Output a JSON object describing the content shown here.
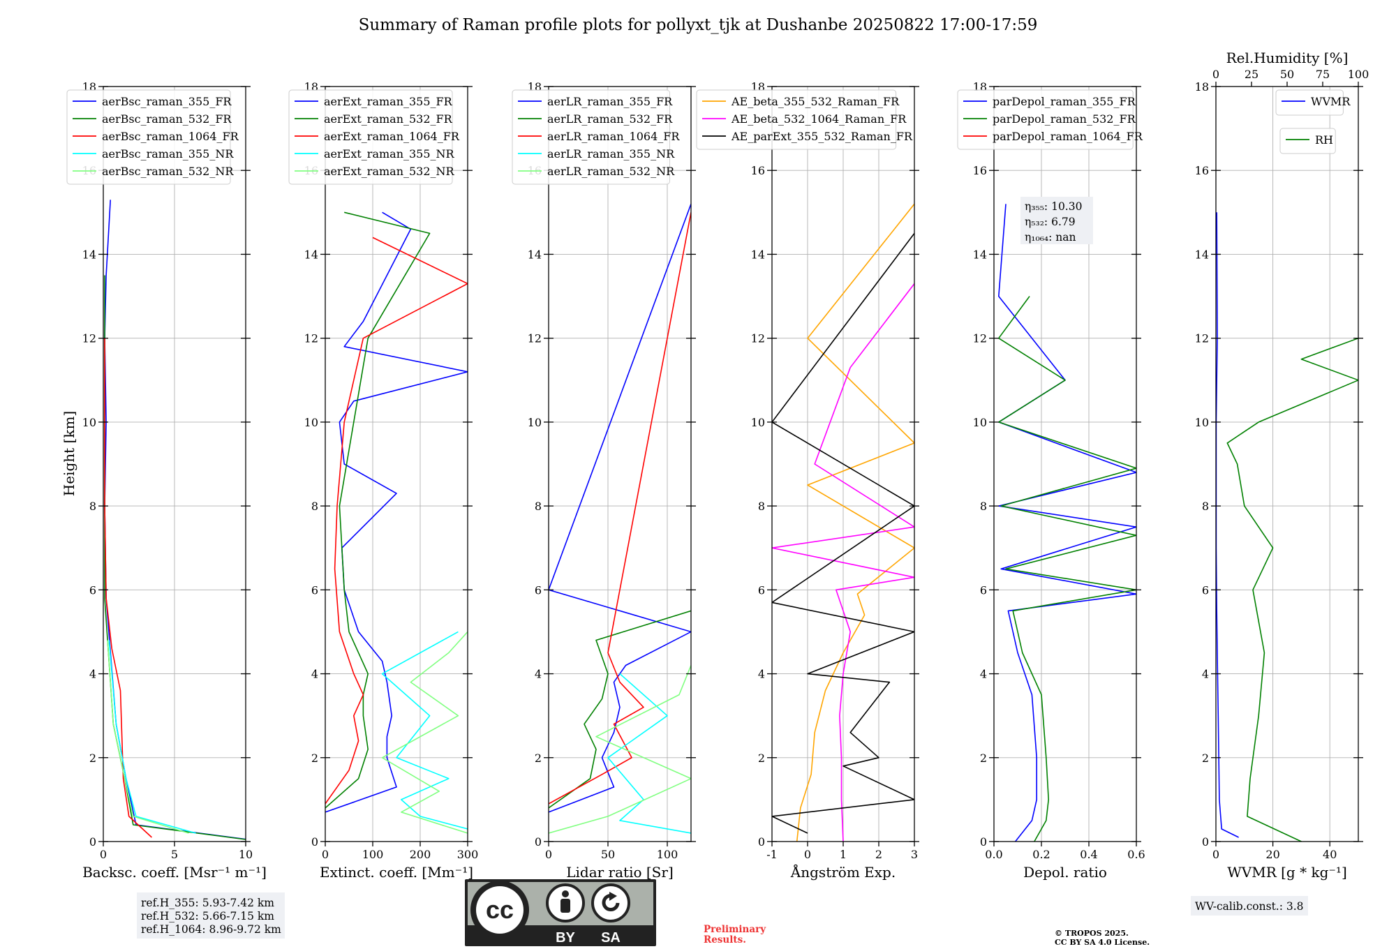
{
  "figure": {
    "title": "Summary of Raman profile plots for pollyxt_tjk at Dushanbe 20250822 17:00-17:59",
    "ylabel": "Height [km]"
  },
  "chart_data": [
    {
      "type": "line",
      "id": "backscatter",
      "xlabel": "Backsc. coeff. [Msr⁻¹ m⁻¹]",
      "xlim": [
        0,
        10
      ],
      "xticks": [
        0,
        5,
        10
      ],
      "ylim": [
        0,
        18
      ],
      "yticks": [
        0,
        2,
        4,
        6,
        8,
        10,
        12,
        14,
        16,
        18
      ],
      "grid": true,
      "legend": "top-left",
      "series": [
        {
          "name": "aerBsc_raman_355_FR",
          "color": "#0000ff",
          "x": [
            10.1,
            2.3,
            1.6,
            0.9,
            0.2,
            0.1,
            0.2,
            0.1,
            0.2,
            0.5
          ],
          "y": [
            0.05,
            0.4,
            1.5,
            2.8,
            5.8,
            8.0,
            10.0,
            12.0,
            13.5,
            15.3
          ]
        },
        {
          "name": "aerBsc_raman_532_FR",
          "color": "#008000",
          "x": [
            10.0,
            2.1,
            1.5,
            0.7,
            0.1,
            0.1,
            0.1,
            0.1,
            0.1
          ],
          "y": [
            0.05,
            0.4,
            1.5,
            2.8,
            5.8,
            8.0,
            10.0,
            12.0,
            13.5
          ]
        },
        {
          "name": "aerBsc_raman_1064_FR",
          "color": "#ff0000",
          "x": [
            3.4,
            1.8,
            1.4,
            1.2,
            0.6,
            0.2,
            0.1,
            0.1
          ],
          "y": [
            0.1,
            0.6,
            1.5,
            3.6,
            4.6,
            5.8,
            8.0,
            12.0
          ]
        },
        {
          "name": "aerBsc_raman_355_NR",
          "color": "#00ffff",
          "x": [
            6.5,
            2.3,
            1.6,
            0.9,
            0.4
          ],
          "y": [
            0.2,
            0.6,
            1.5,
            2.8,
            4.8
          ]
        },
        {
          "name": "aerBsc_raman_532_NR",
          "color": "#80ff80",
          "x": [
            6.0,
            2.1,
            1.5,
            0.7,
            0.3
          ],
          "y": [
            0.2,
            0.6,
            1.5,
            2.8,
            4.8
          ]
        }
      ]
    },
    {
      "type": "line",
      "id": "extinction",
      "xlabel": "Extinct. coeff. [Mm⁻¹]",
      "xlim": [
        0,
        300
      ],
      "xticks": [
        0,
        100,
        200,
        300
      ],
      "ylim": [
        0,
        18
      ],
      "yticks": [
        0,
        2,
        4,
        6,
        8,
        10,
        12,
        14,
        16,
        18
      ],
      "grid": true,
      "legend": "top-left",
      "series": [
        {
          "name": "aerExt_raman_355_FR",
          "color": "#0000ff",
          "x": [
            0,
            150,
            130,
            130,
            140,
            130,
            120,
            70,
            40,
            35,
            150,
            40,
            30,
            60,
            300,
            40,
            80,
            180,
            120
          ],
          "y": [
            0.7,
            1.3,
            2.0,
            2.5,
            3.0,
            3.8,
            4.3,
            5.0,
            6.0,
            7.0,
            8.3,
            9.0,
            10.0,
            10.5,
            11.2,
            11.8,
            12.4,
            14.6,
            15.0
          ]
        },
        {
          "name": "aerExt_raman_532_FR",
          "color": "#008000",
          "x": [
            0,
            70,
            90,
            80,
            80,
            90,
            50,
            40,
            30,
            60,
            90,
            220,
            40
          ],
          "y": [
            0.8,
            1.5,
            2.2,
            3.0,
            3.5,
            4.0,
            5.0,
            6.0,
            8.0,
            10.0,
            12.0,
            14.5,
            15.0
          ]
        },
        {
          "name": "aerExt_raman_1064_FR",
          "color": "#ff0000",
          "x": [
            0,
            50,
            70,
            60,
            80,
            60,
            30,
            20,
            25,
            40,
            80,
            300,
            100
          ],
          "y": [
            0.9,
            1.7,
            2.4,
            3.0,
            3.5,
            4.0,
            5.0,
            6.5,
            8.0,
            10.0,
            12.0,
            13.3,
            14.4
          ]
        },
        {
          "name": "aerExt_raman_355_NR",
          "color": "#00ffff",
          "x": [
            300,
            200,
            160,
            260,
            150,
            220,
            120,
            280
          ],
          "y": [
            0.3,
            0.6,
            1.0,
            1.5,
            2.0,
            3.0,
            4.0,
            5.0
          ]
        },
        {
          "name": "aerExt_raman_532_NR",
          "color": "#80ff80",
          "x": [
            300,
            160,
            240,
            120,
            280,
            180,
            260,
            300
          ],
          "y": [
            0.2,
            0.7,
            1.2,
            2.0,
            3.0,
            3.8,
            4.5,
            5.0
          ]
        }
      ]
    },
    {
      "type": "line",
      "id": "lidar_ratio",
      "xlabel": "Lidar ratio [Sr]",
      "xlim": [
        0,
        120
      ],
      "xticks": [
        0,
        50,
        100
      ],
      "ylim": [
        0,
        18
      ],
      "yticks": [
        0,
        2,
        4,
        6,
        8,
        10,
        12,
        14,
        16,
        18
      ],
      "grid": true,
      "legend": "top-left",
      "series": [
        {
          "name": "aerLR_raman_355_FR",
          "color": "#0000ff",
          "x": [
            0,
            55,
            45,
            55,
            60,
            55,
            65,
            120,
            0,
            120
          ],
          "y": [
            0.7,
            1.3,
            2.0,
            2.6,
            3.2,
            3.8,
            4.2,
            5.0,
            6.0,
            15.2
          ]
        },
        {
          "name": "aerLR_raman_532_FR",
          "color": "#008000",
          "x": [
            0,
            35,
            40,
            30,
            45,
            50,
            40,
            120
          ],
          "y": [
            0.8,
            1.5,
            2.2,
            2.8,
            3.4,
            4.0,
            4.8,
            5.5
          ]
        },
        {
          "name": "aerLR_raman_1064_FR",
          "color": "#ff0000",
          "x": [
            0,
            45,
            70,
            55,
            80,
            60,
            50,
            120
          ],
          "y": [
            0.9,
            1.6,
            2.0,
            2.8,
            3.2,
            3.8,
            4.5,
            15.0
          ]
        },
        {
          "name": "aerLR_raman_355_NR",
          "color": "#00ffff",
          "x": [
            120,
            60,
            80,
            50,
            100,
            60
          ],
          "y": [
            0.2,
            0.5,
            1.0,
            2.0,
            3.0,
            4.0
          ]
        },
        {
          "name": "aerLR_raman_532_NR",
          "color": "#80ff80",
          "x": [
            0,
            50,
            120,
            40,
            110,
            120
          ],
          "y": [
            0.2,
            0.6,
            1.5,
            2.5,
            3.5,
            4.2
          ]
        }
      ]
    },
    {
      "type": "line",
      "id": "angstrom",
      "xlabel": "Ångström Exp.",
      "xlim": [
        -1,
        3
      ],
      "xticks": [
        -1,
        0,
        1,
        2,
        3
      ],
      "ylim": [
        0,
        18
      ],
      "yticks": [
        0,
        2,
        4,
        6,
        8,
        10,
        12,
        14,
        16,
        18
      ],
      "grid": true,
      "legend": "top-center",
      "series": [
        {
          "name": "AE_beta_355_532_Raman_FR",
          "color": "#ffa500",
          "x": [
            -0.3,
            -0.2,
            0.1,
            0.2,
            0.5,
            1.0,
            1.6,
            1.4,
            3.0,
            0.0,
            3.0,
            0.0,
            3.0
          ],
          "y": [
            0.0,
            0.8,
            1.6,
            2.6,
            3.6,
            4.5,
            5.4,
            5.9,
            7.0,
            8.5,
            9.5,
            12.0,
            15.2
          ]
        },
        {
          "name": "AE_beta_532_1064_Raman_FR",
          "color": "#ff00ff",
          "x": [
            1.0,
            0.95,
            0.95,
            0.9,
            1.0,
            1.2,
            0.8,
            3.0,
            -1.0,
            3.0,
            0.2,
            1.2,
            3.0
          ],
          "y": [
            0.0,
            1.0,
            2.0,
            3.0,
            4.0,
            5.0,
            6.0,
            6.3,
            7.0,
            7.5,
            9.0,
            11.3,
            13.3
          ]
        },
        {
          "name": "AE_parExt_355_532_Raman_FR",
          "color": "#000000",
          "x": [
            0.0,
            -1.0,
            3.0,
            1.0,
            2.0,
            1.2,
            2.3,
            0.0,
            3.0,
            -1.0,
            3.0,
            -1.0,
            3.0
          ],
          "y": [
            0.2,
            0.6,
            1.0,
            1.8,
            2.0,
            2.6,
            3.8,
            4.0,
            5.0,
            5.7,
            8.0,
            10.0,
            14.5
          ]
        }
      ]
    },
    {
      "type": "line",
      "id": "depolarization",
      "xlabel": "Depol. ratio",
      "xlim": [
        0.0,
        0.6
      ],
      "xticks": [
        0.0,
        0.2,
        0.4,
        0.6
      ],
      "ylim": [
        0,
        18
      ],
      "yticks": [
        0,
        2,
        4,
        6,
        8,
        10,
        12,
        14,
        16,
        18
      ],
      "grid": true,
      "legend": "top-left",
      "annotation": [
        "η₃₅₅: 10.30",
        "η₅₃₂: 6.79",
        "η₁₀₆₄: nan"
      ],
      "series": [
        {
          "name": "parDepol_raman_355_FR",
          "color": "#0000ff",
          "x": [
            0.09,
            0.16,
            0.18,
            0.18,
            0.16,
            0.1,
            0.06,
            0.6,
            0.03,
            0.6,
            0.02,
            0.6,
            0.02,
            0.3,
            0.02,
            0.05
          ],
          "y": [
            0.0,
            0.5,
            1.0,
            2.0,
            3.5,
            4.5,
            5.5,
            5.9,
            6.5,
            7.5,
            8.0,
            8.8,
            10.0,
            11.0,
            13.0,
            15.2
          ]
        },
        {
          "name": "parDepol_raman_532_FR",
          "color": "#008000",
          "x": [
            0.17,
            0.22,
            0.23,
            0.22,
            0.2,
            0.12,
            0.08,
            0.6,
            0.05,
            0.6,
            0.03,
            0.6,
            0.02,
            0.3,
            0.02,
            0.15
          ],
          "y": [
            0.0,
            0.5,
            1.0,
            2.0,
            3.5,
            4.5,
            5.5,
            6.0,
            6.5,
            7.3,
            8.0,
            8.9,
            10.0,
            11.0,
            12.0,
            13.0
          ]
        },
        {
          "name": "parDepol_raman_1064_FR",
          "color": "#ff0000",
          "x": [],
          "y": []
        }
      ]
    },
    {
      "type": "line",
      "id": "water_vapor",
      "xlabel": "WVMR [g * kg⁻¹]",
      "xlim": [
        0,
        50
      ],
      "xticks": [
        0,
        20,
        40
      ],
      "ylim": [
        0,
        18
      ],
      "yticks": [
        0,
        2,
        4,
        6,
        8,
        10,
        12,
        14,
        16,
        18
      ],
      "top_xlabel": "Rel.Humidity [%]",
      "top_xlim": [
        0,
        100
      ],
      "top_xticks": [
        0,
        25,
        50,
        75,
        100
      ],
      "grid": true,
      "legends": [
        "top-right",
        "top-right"
      ],
      "series": [
        {
          "name": "WVMR",
          "color": "#0000ff",
          "axis": "bottom",
          "x": [
            8,
            2,
            1.2,
            1.0,
            0.8,
            0.6,
            0.3,
            0.1,
            0.1,
            0.5,
            0.3
          ],
          "y": [
            0.1,
            0.3,
            1.0,
            2.0,
            3.0,
            4.0,
            5.5,
            7.0,
            10.0,
            12.0,
            15.0
          ]
        },
        {
          "name": "RH",
          "color": "#008000",
          "axis": "top",
          "x": [
            60,
            22,
            24,
            30,
            34,
            26,
            40,
            20,
            15,
            8,
            30,
            100,
            60,
            100
          ],
          "y": [
            0.0,
            0.6,
            1.5,
            3.0,
            4.5,
            6.0,
            7.0,
            8.0,
            9.0,
            9.5,
            10.0,
            11.0,
            11.5,
            12.0
          ]
        }
      ]
    }
  ],
  "info": {
    "ref_h": [
      "ref.H_355: 5.93-7.42 km",
      "ref.H_532: 5.66-7.15 km",
      "ref.H_1064: 8.96-9.72 km"
    ],
    "wv_calib": "WV-calib.const.: 3.8",
    "preliminary": [
      "Preliminary",
      "Results."
    ],
    "copyright": [
      "© TROPOS 2025.",
      "CC BY SA 4.0 License."
    ],
    "license_badge": {
      "cc": "cc",
      "by": "BY",
      "sa": "SA"
    }
  }
}
